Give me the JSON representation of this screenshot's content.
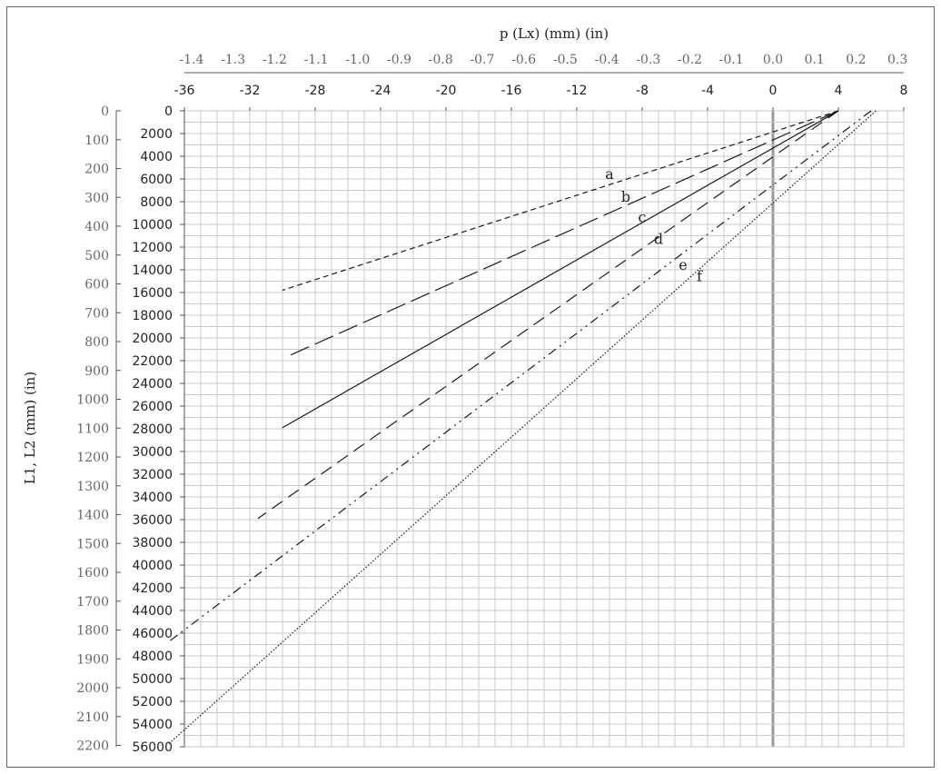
{
  "chart_data": {
    "type": "line",
    "title": "",
    "x_axis_label": "p (Lx) (mm) (in)",
    "y_axis_label": "L1, L2 (mm) (in)",
    "x_mm_ticks": [
      "-36",
      "-32",
      "-28",
      "-24",
      "-20",
      "-16",
      "-12",
      "-8",
      "-4",
      "0",
      "4",
      "8"
    ],
    "x_in_ticks": [
      "-1.4",
      "-1.3",
      "-1.2",
      "-1.1",
      "-1.0",
      "-0.9",
      "-0.8",
      "-0.7",
      "-0.6",
      "-0.5",
      "-0.4",
      "-0.3",
      "-0.2",
      "-0.1",
      "0.0",
      "0.1",
      "0.2",
      "0.3"
    ],
    "y_mm_ticks": [
      "0",
      "2000",
      "4000",
      "6000",
      "8000",
      "10000",
      "12000",
      "14000",
      "16000",
      "18000",
      "20000",
      "22000",
      "24000",
      "26000",
      "28000",
      "30000",
      "32000",
      "34000",
      "36000",
      "38000",
      "40000",
      "42000",
      "44000",
      "46000",
      "48000",
      "50000",
      "52000",
      "54000",
      "56000"
    ],
    "y_in_ticks": [
      "0",
      "100",
      "200",
      "300",
      "400",
      "500",
      "600",
      "700",
      "800",
      "900",
      "1000",
      "1100",
      "1200",
      "1300",
      "1400",
      "1500",
      "1600",
      "1700",
      "1800",
      "1900",
      "2000",
      "2100",
      "2200"
    ],
    "x_range_mm": [
      -36,
      8
    ],
    "y_range_mm": [
      0,
      56000
    ],
    "grid": true,
    "series": [
      {
        "name": "a",
        "style": "short-dash",
        "points": [
          [
            4,
            0
          ],
          [
            -30,
            15800
          ]
        ]
      },
      {
        "name": "b",
        "style": "long-dash",
        "points": [
          [
            4,
            0
          ],
          [
            -29.5,
            21500
          ]
        ]
      },
      {
        "name": "c",
        "style": "solid",
        "points": [
          [
            4,
            0
          ],
          [
            -30,
            27900
          ]
        ]
      },
      {
        "name": "d",
        "style": "dash",
        "points": [
          [
            4,
            0
          ],
          [
            -31.5,
            35900
          ]
        ]
      },
      {
        "name": "e",
        "style": "dash-dot-dot",
        "points": [
          [
            6,
            0
          ],
          [
            -37,
            46800
          ]
        ]
      },
      {
        "name": "f",
        "style": "dotted",
        "points": [
          [
            6.3,
            0
          ],
          [
            -37,
            55800
          ]
        ]
      }
    ],
    "series_labels": [
      {
        "name": "a",
        "x": -10,
        "y": 6000
      },
      {
        "name": "b",
        "x": -9,
        "y": 8000
      },
      {
        "name": "c",
        "x": -8,
        "y": 9800
      },
      {
        "name": "d",
        "x": -7,
        "y": 11700
      },
      {
        "name": "e",
        "x": -5.5,
        "y": 14000
      },
      {
        "name": "f",
        "x": -4.5,
        "y": 15000
      }
    ]
  }
}
